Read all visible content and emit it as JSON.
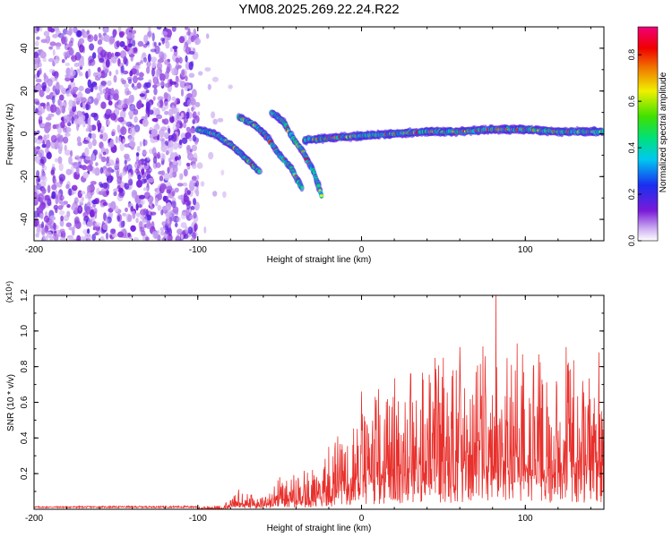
{
  "chart_data": [
    {
      "type": "heatmap",
      "title": "YM08.2025.269.22.24.R22",
      "xlabel": "Height of straight line (km)",
      "ylabel": "Frequency (Hz)",
      "xlim": [
        -200,
        148
      ],
      "ylim": [
        -50,
        50
      ],
      "x_ticks": [
        -200,
        -100,
        0,
        100
      ],
      "y_ticks": [
        -40,
        -20,
        0,
        20,
        40
      ],
      "x_tick_labels": [
        "-200",
        "-100",
        "0",
        "100"
      ],
      "y_tick_labels": [
        "-40",
        "-20",
        "0",
        "20",
        "40"
      ],
      "colorbar": {
        "label": "Normalized spectral amplitude",
        "range": [
          0,
          0.92
        ],
        "ticks": [
          0.0,
          0.2,
          0.4,
          0.6,
          0.8
        ],
        "tick_labels": [
          "0.0",
          "0.2",
          "0.4",
          "0.6",
          "0.8"
        ],
        "colormap": "rainbow (white-violet-blue-cyan-green-yellow-red-magenta)"
      },
      "features": [
        {
          "name": "noise-field",
          "x_range": [
            -200,
            -100
          ],
          "freq_range": [
            -50,
            50
          ],
          "amplitude": 0.05
        },
        {
          "name": "track-upper-left",
          "points": [
            [
              -100,
              2
            ],
            [
              -90,
              0
            ],
            [
              -80,
              -5
            ],
            [
              -70,
              -12
            ],
            [
              -62,
              -18
            ]
          ],
          "amplitude": 0.4
        },
        {
          "name": "track-descending-1",
          "points": [
            [
              -75,
              8
            ],
            [
              -65,
              4
            ],
            [
              -57,
              -2
            ],
            [
              -50,
              -10
            ],
            [
              -43,
              -16
            ],
            [
              -36,
              -26
            ]
          ],
          "amplitude": 0.5
        },
        {
          "name": "track-descending-2",
          "points": [
            [
              -55,
              10
            ],
            [
              -48,
              6
            ],
            [
              -42,
              -2
            ],
            [
              -36,
              -8
            ],
            [
              -29,
              -18
            ],
            [
              -24,
              -30
            ]
          ],
          "amplitude": 0.5
        },
        {
          "name": "track-horizontal",
          "points": [
            [
              -35,
              -3
            ],
            [
              -20,
              -2
            ],
            [
              0,
              -1
            ],
            [
              20,
              0
            ],
            [
              40,
              1
            ],
            [
              60,
              1
            ],
            [
              80,
              2
            ],
            [
              100,
              2
            ],
            [
              120,
              1
            ],
            [
              148,
              1
            ]
          ],
          "amplitude": 0.8
        }
      ]
    },
    {
      "type": "line",
      "xlabel": "Height of straight line (km)",
      "ylabel": "SNR (10 * v/v)",
      "y_multiplier": "(x10⁴)",
      "xlim": [
        -200,
        148
      ],
      "ylim": [
        0,
        1.2
      ],
      "x_ticks": [
        -200,
        -100,
        0,
        100
      ],
      "y_ticks": [
        0.2,
        0.4,
        0.6,
        0.8,
        1.0,
        1.2
      ],
      "x_tick_labels": [
        "-200",
        "-100",
        "0",
        "100"
      ],
      "y_tick_labels": [
        "0.2",
        "0.4",
        "0.6",
        "0.8",
        "1.0",
        "1.2"
      ],
      "series": [
        {
          "name": "SNR",
          "color": "#e8302c",
          "envelope": {
            "x": [
              -200,
              -100,
              -85,
              -75,
              -60,
              -50,
              -40,
              -30,
              -20,
              -10,
              0,
              20,
              40,
              60,
              80,
              100,
              120,
              148
            ],
            "y": [
              0.012,
              0.015,
              0.02,
              0.1,
              0.07,
              0.18,
              0.2,
              0.24,
              0.32,
              0.5,
              0.6,
              0.75,
              0.85,
              0.9,
              0.95,
              0.9,
              0.88,
              0.8
            ]
          },
          "peaks": [
            [
              -75,
              0.11
            ],
            [
              -50,
              0.18
            ],
            [
              -20,
              0.35
            ],
            [
              0,
              0.66
            ],
            [
              30,
              0.76
            ],
            [
              50,
              0.85
            ],
            [
              60,
              0.91
            ],
            [
              70,
              0.77
            ],
            [
              82,
              1.2
            ],
            [
              95,
              0.93
            ],
            [
              105,
              0.79
            ],
            [
              125,
              0.91
            ],
            [
              135,
              0.72
            ],
            [
              145,
              0.88
            ]
          ]
        }
      ]
    }
  ]
}
